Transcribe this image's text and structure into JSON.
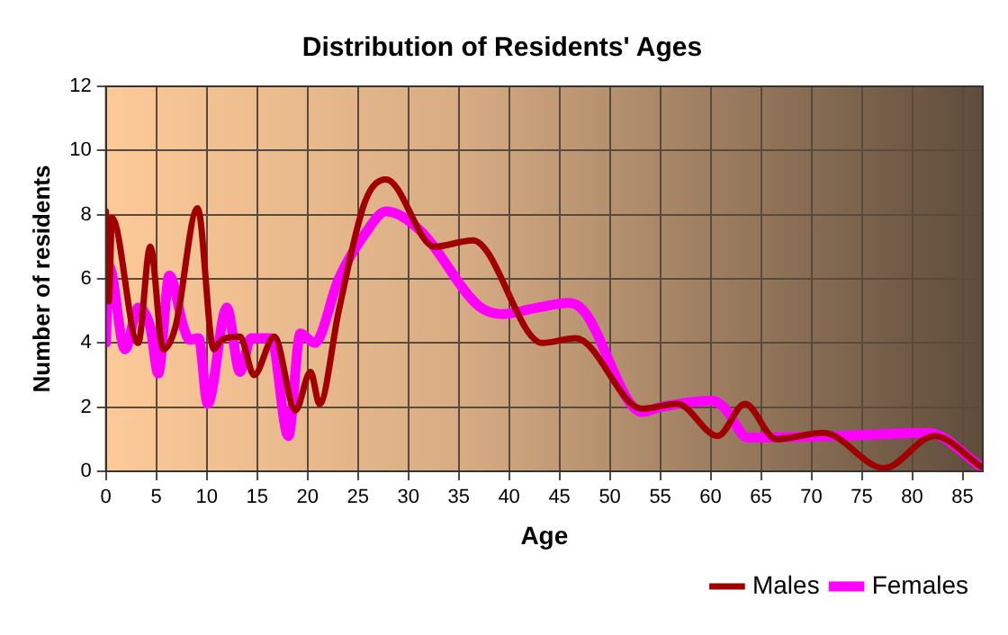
{
  "chart_data": {
    "type": "line",
    "title": "Distribution of Residents' Ages",
    "xlabel": "Age",
    "ylabel": "Number of residents",
    "xlim": [
      0,
      87
    ],
    "xticks": [
      0,
      5,
      10,
      15,
      20,
      25,
      30,
      35,
      40,
      45,
      50,
      55,
      60,
      65,
      70,
      75,
      80,
      85
    ],
    "ylim": [
      0,
      12
    ],
    "yticks": [
      0,
      2,
      4,
      6,
      8,
      10,
      12
    ],
    "grid": true,
    "legend": "bottom right",
    "marker": "none",
    "line_style": "solid",
    "series": [
      {
        "name": "Males",
        "color": "#a00000",
        "x": [
          0,
          0.3,
          0.6,
          3.2,
          4.4,
          5.7,
          6.9,
          9.1,
          10.7,
          11.5,
          13.3,
          14.7,
          16.7,
          18.8,
          20.3,
          21.2,
          23.1,
          25.7,
          27.8,
          32.6,
          36.4,
          43.3,
          46.6,
          53.2,
          56.7,
          60.7,
          63.4,
          66.5,
          71.2,
          77.2,
          82.2,
          86.8
        ],
        "values": [
          8.1,
          5.3,
          7.9,
          4.0,
          7.0,
          3.8,
          4.5,
          8.2,
          3.8,
          4.1,
          4.2,
          3.0,
          4.2,
          1.9,
          3.1,
          2.1,
          5.0,
          8.4,
          9.1,
          7.0,
          7.2,
          4.0,
          4.15,
          1.95,
          2.1,
          1.1,
          2.1,
          1.0,
          1.2,
          0.1,
          1.1,
          0.15
        ]
      },
      {
        "name": "Females",
        "color": "#ff00ff",
        "x": [
          0,
          0.3,
          1.9,
          3.2,
          4.4,
          5.2,
          6.3,
          7.7,
          8.3,
          9.2,
          10.1,
          12.0,
          13.3,
          14.4,
          16.4,
          18.1,
          19.3,
          20.7,
          23.1,
          25.7,
          27.8,
          31.2,
          37,
          39.3,
          42.8,
          46,
          47.4,
          53.2,
          55,
          60.2,
          61.3,
          63.7,
          72.3,
          81.6,
          86.8
        ],
        "values": [
          4.0,
          6.4,
          3.8,
          5.1,
          4.5,
          3.05,
          6.1,
          4.5,
          4.1,
          4.15,
          2.1,
          5.1,
          3.1,
          4.15,
          4.15,
          1.1,
          4.3,
          4.0,
          6.0,
          7.4,
          8.1,
          7.5,
          5.15,
          4.9,
          5.1,
          5.25,
          5.0,
          1.85,
          2.0,
          2.2,
          2.0,
          1.05,
          1.1,
          1.2,
          0.15
        ]
      }
    ]
  }
}
